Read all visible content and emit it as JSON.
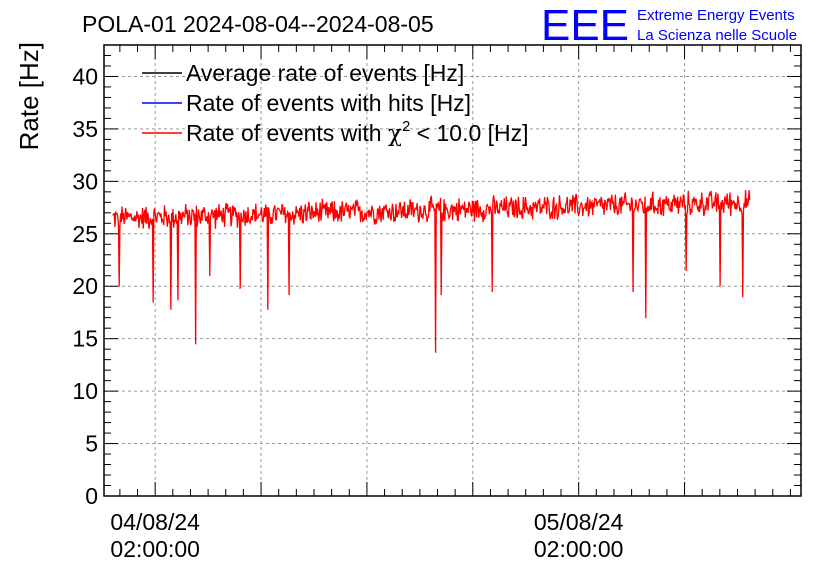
{
  "chart_data": {
    "type": "line",
    "title": "POLA-01 2024-08-04--2024-08-05",
    "ylabel": "Rate [Hz]",
    "xlabel": "",
    "ylim": [
      0,
      43
    ],
    "y_ticks": [
      0,
      5,
      10,
      15,
      20,
      25,
      30,
      35,
      40
    ],
    "y_tick_labels": [
      "0",
      "5",
      "10",
      "15",
      "20",
      "25",
      "30",
      "35",
      "40"
    ],
    "x_unit": "hours since 2024-08-04 00:00:00",
    "xlim": [
      -0.9,
      38.6
    ],
    "x_major_ticks": [
      {
        "value": 2,
        "date": "04/08/24",
        "time": "02:00:00"
      },
      {
        "value": 26,
        "date": "05/08/24",
        "time": "02:00:00"
      }
    ],
    "x_minor_grid": [
      2,
      8,
      14,
      20,
      26,
      32
    ],
    "grid": true,
    "legend_position": "top-left",
    "legend": [
      {
        "label_pre": "Average rate of events [Hz]",
        "sym": "",
        "sup": "",
        "label_post": "",
        "color": "#000000"
      },
      {
        "label_pre": "Rate of events with hits [Hz]",
        "sym": "",
        "sup": "",
        "label_post": "",
        "color": "#0000ff"
      },
      {
        "label_pre": "Rate of events with ",
        "sym": "χ",
        "sup": "2",
        "label_post": " < 10.0 [Hz]",
        "color": "#ff0000"
      }
    ],
    "series": [
      {
        "name": "Rate of events with χ2 < 10.0 [Hz]",
        "color": "#ff0000",
        "x_start": -0.4,
        "x_end": 35.7,
        "baseline_start": 26.5,
        "baseline_end": 28.0,
        "noise_amplitude": 1.0,
        "spikes": [
          {
            "x": -0.05,
            "y": 20.0
          },
          {
            "x": 1.9,
            "y": 18.5
          },
          {
            "x": 2.9,
            "y": 17.8
          },
          {
            "x": 3.3,
            "y": 18.7
          },
          {
            "x": 4.3,
            "y": 14.5
          },
          {
            "x": 5.1,
            "y": 21.0
          },
          {
            "x": 6.8,
            "y": 19.8
          },
          {
            "x": 8.4,
            "y": 17.8
          },
          {
            "x": 9.6,
            "y": 19.2
          },
          {
            "x": 17.9,
            "y": 13.7
          },
          {
            "x": 18.2,
            "y": 19.2
          },
          {
            "x": 21.1,
            "y": 19.5
          },
          {
            "x": 29.1,
            "y": 19.5
          },
          {
            "x": 29.8,
            "y": 17.0
          },
          {
            "x": 32.1,
            "y": 21.5
          },
          {
            "x": 34.0,
            "y": 20.0
          },
          {
            "x": 35.3,
            "y": 19.0
          }
        ]
      }
    ]
  },
  "logo": {
    "mark": "EEE",
    "line1": "Extreme Energy Events",
    "line2": "La Scienza nelle Scuole",
    "color": "#0000ff"
  }
}
